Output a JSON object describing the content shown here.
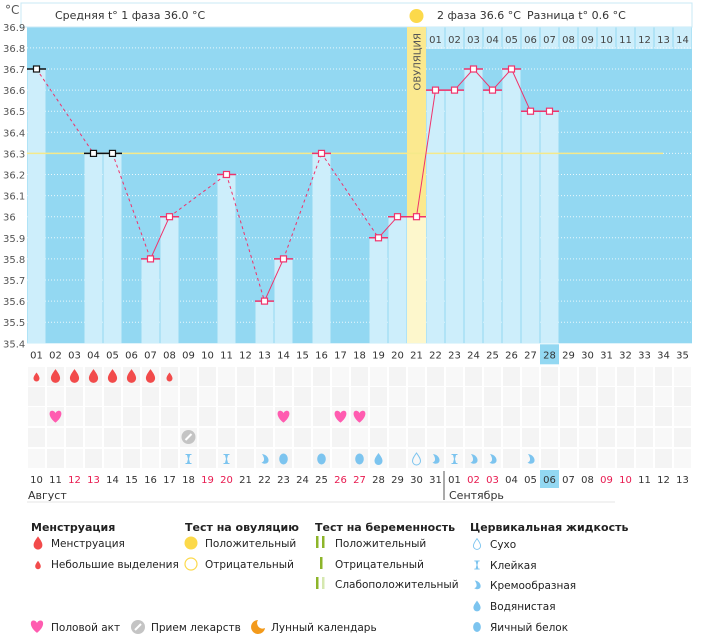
{
  "header": {
    "unit": "°C",
    "phase1": "Средняя t° 1 фаза 36.0 °C",
    "phase2": "2 фаза 36.6 °C",
    "difference": "Разница t° 0.6 °C",
    "ovulation_label": "ОВУЛЯЦИЯ"
  },
  "chart_data": {
    "type": "line",
    "ylabel": "°C",
    "ylim": [
      35.4,
      36.9
    ],
    "y_ticks": [
      "36.9",
      "36.8",
      "36.7",
      "36.6",
      "36.5",
      "36.4",
      "36.3",
      "36.2",
      "36.1",
      "36",
      "35.9",
      "35.8",
      "35.7",
      "35.6",
      "35.5",
      "35.4"
    ],
    "cycle_days": [
      "01",
      "02",
      "03",
      "04",
      "05",
      "06",
      "07",
      "08",
      "09",
      "10",
      "11",
      "12",
      "13",
      "14",
      "15",
      "16",
      "17",
      "18",
      "19",
      "20",
      "21",
      "22",
      "23",
      "24",
      "25",
      "26",
      "27",
      "28",
      "29",
      "30",
      "31",
      "32",
      "33",
      "34",
      "35"
    ],
    "current_day": "28",
    "temperatures": [
      36.7,
      null,
      null,
      36.3,
      36.3,
      null,
      35.8,
      36.0,
      null,
      null,
      36.2,
      null,
      35.6,
      35.8,
      null,
      36.3,
      null,
      null,
      35.9,
      36.0,
      36.0,
      36.6,
      36.6,
      36.7,
      36.6,
      36.7,
      36.5,
      36.5,
      null,
      null,
      null,
      null,
      null,
      null,
      null
    ],
    "excluded_days": [
      "01",
      "04",
      "05"
    ],
    "coverline": 36.3,
    "ovulation_day": "21",
    "phase2_days": [
      "01",
      "02",
      "03",
      "04",
      "05",
      "06",
      "07",
      "08",
      "09",
      "10",
      "11",
      "12",
      "13",
      "14"
    ],
    "grid": true
  },
  "calendar": {
    "dates": [
      {
        "d": "10",
        "red": false
      },
      {
        "d": "11",
        "red": false
      },
      {
        "d": "12",
        "red": true
      },
      {
        "d": "13",
        "red": true
      },
      {
        "d": "14",
        "red": false
      },
      {
        "d": "15",
        "red": false
      },
      {
        "d": "16",
        "red": false
      },
      {
        "d": "17",
        "red": false
      },
      {
        "d": "18",
        "red": false
      },
      {
        "d": "19",
        "red": true
      },
      {
        "d": "20",
        "red": true
      },
      {
        "d": "21",
        "red": false
      },
      {
        "d": "22",
        "red": false
      },
      {
        "d": "23",
        "red": false
      },
      {
        "d": "24",
        "red": false
      },
      {
        "d": "25",
        "red": false
      },
      {
        "d": "26",
        "red": true
      },
      {
        "d": "27",
        "red": true
      },
      {
        "d": "28",
        "red": false
      },
      {
        "d": "29",
        "red": false
      },
      {
        "d": "30",
        "red": false
      },
      {
        "d": "31",
        "red": false
      },
      {
        "d": "01",
        "red": false
      },
      {
        "d": "02",
        "red": true
      },
      {
        "d": "03",
        "red": true
      },
      {
        "d": "04",
        "red": false
      },
      {
        "d": "05",
        "red": false
      },
      {
        "d": "06",
        "red": false
      },
      {
        "d": "07",
        "red": false
      },
      {
        "d": "08",
        "red": false
      },
      {
        "d": "09",
        "red": true
      },
      {
        "d": "10",
        "red": true
      },
      {
        "d": "11",
        "red": false
      },
      {
        "d": "12",
        "red": false
      },
      {
        "d": "13",
        "red": false
      }
    ],
    "month1": "Август",
    "month2": "Сентябрь"
  },
  "markers": {
    "menstruation": {
      "01": "light",
      "02": "heavy",
      "03": "heavy",
      "04": "heavy",
      "05": "heavy",
      "06": "heavy",
      "07": "heavy",
      "08": "light"
    },
    "intercourse": [
      "02",
      "14",
      "17",
      "18"
    ],
    "medication": [
      "09"
    ],
    "cervical": {
      "09": "sticky",
      "11": "sticky",
      "13": "creamy",
      "14": "eggwhite",
      "16": "eggwhite",
      "18": "eggwhite",
      "19": "watery",
      "21": "dry",
      "22": "creamy",
      "23": "sticky",
      "24": "creamy",
      "25": "creamy",
      "27": "creamy"
    }
  },
  "colors": {
    "plot_bg": "#93d8f2",
    "bar": "#cdeefb",
    "line": "#f0336b",
    "coverline": "#f5e98a",
    "ovulation": "#fbe98f",
    "menstruation": "#f24b4b",
    "heart": "#ff5cb0",
    "cervical": "#7cc4ef",
    "pregnancy": "#8db52a",
    "moon": "#f39a1b"
  },
  "legend": {
    "menstruation": {
      "title": "Менструация",
      "items": [
        "Менструация",
        "Небольшие выделения"
      ]
    },
    "ovulation_test": {
      "title": "Тест на овуляцию",
      "items": [
        "Положительный",
        "Отрицательный"
      ]
    },
    "pregnancy_test": {
      "title": "Тест на беременность",
      "items": [
        "Положительный",
        "Отрицательный",
        "Слабоположительный"
      ]
    },
    "cervical": {
      "title": "Цервикальная жидкость",
      "items": [
        "Сухо",
        "Клейкая",
        "Кремообразная",
        "Водянистая",
        "Яичный белок"
      ]
    },
    "bottom": [
      "Половой акт",
      "Прием лекарств",
      "Лунный календарь"
    ]
  }
}
